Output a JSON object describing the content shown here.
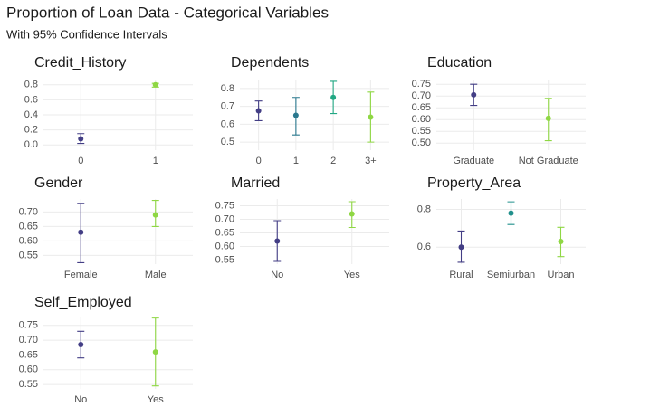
{
  "title": "Proportion of Loan Data - Categorical Variables",
  "subtitle": "With 95% Confidence Intervals",
  "chart_data": [
    {
      "type": "errorbar",
      "title": "Credit_History",
      "categories": [
        "0",
        "1"
      ],
      "values": [
        0.08,
        0.8
      ],
      "lower": [
        0.02,
        0.77
      ],
      "upper": [
        0.15,
        0.82
      ],
      "colors": [
        "#433E85",
        "#8FD744"
      ],
      "ylim": [
        -0.07,
        0.87
      ],
      "yticks": [
        {
          "value": 0,
          "label": "0.0"
        },
        0.2,
        0.4,
        0.6,
        0.8
      ],
      "grid": true
    },
    {
      "type": "errorbar",
      "title": "Dependents",
      "categories": [
        "0",
        "1",
        "2",
        "3+"
      ],
      "values": [
        0.675,
        0.65,
        0.75,
        0.64
      ],
      "lower": [
        0.62,
        0.54,
        0.66,
        0.5
      ],
      "upper": [
        0.73,
        0.75,
        0.84,
        0.78
      ],
      "colors": [
        "#433E85",
        "#2A788E",
        "#22A884",
        "#8FD744"
      ],
      "ylim": [
        0.455,
        0.85
      ],
      "yticks": [
        0.5,
        0.6,
        0.7,
        0.8
      ],
      "grid": true
    },
    {
      "type": "errorbar",
      "title": "Education",
      "categories": [
        "Graduate",
        "Not Graduate"
      ],
      "values": [
        0.705,
        0.605
      ],
      "lower": [
        0.66,
        0.51
      ],
      "upper": [
        0.75,
        0.69
      ],
      "colors": [
        "#433E85",
        "#8FD744"
      ],
      "ylim": [
        0.47,
        0.77
      ],
      "yticks": [
        {
          "value": 0.5,
          "label": "0.50"
        },
        0.55,
        {
          "value": 0.6,
          "label": "0.60"
        },
        0.65,
        {
          "value": 0.7,
          "label": "0.70"
        },
        0.75
      ],
      "grid": true
    },
    {
      "type": "errorbar",
      "title": "Gender",
      "categories": [
        "Female",
        "Male"
      ],
      "values": [
        0.63,
        0.69
      ],
      "lower": [
        0.525,
        0.65
      ],
      "upper": [
        0.73,
        0.74
      ],
      "colors": [
        "#433E85",
        "#8FD744"
      ],
      "ylim": [
        0.52,
        0.745
      ],
      "yticks": [
        0.55,
        {
          "value": 0.6,
          "label": "0.60"
        },
        0.65,
        {
          "value": 0.7,
          "label": "0.70"
        }
      ],
      "grid": true
    },
    {
      "type": "errorbar",
      "title": "Married",
      "categories": [
        "No",
        "Yes"
      ],
      "values": [
        0.62,
        0.72
      ],
      "lower": [
        0.545,
        0.67
      ],
      "upper": [
        0.695,
        0.765
      ],
      "colors": [
        "#433E85",
        "#8FD744"
      ],
      "ylim": [
        0.535,
        0.775
      ],
      "yticks": [
        0.55,
        {
          "value": 0.6,
          "label": "0.60"
        },
        0.65,
        {
          "value": 0.7,
          "label": "0.70"
        },
        0.75
      ],
      "grid": true
    },
    {
      "type": "errorbar",
      "title": "Property_Area",
      "categories": [
        "Rural",
        "Semiurban",
        "Urban"
      ],
      "values": [
        0.6,
        0.78,
        0.63
      ],
      "lower": [
        0.52,
        0.72,
        0.55
      ],
      "upper": [
        0.685,
        0.84,
        0.705
      ],
      "colors": [
        "#433E85",
        "#21908C",
        "#8FD744"
      ],
      "ylim": [
        0.51,
        0.855
      ],
      "yticks": [
        0.6,
        0.8
      ],
      "grid": true
    },
    {
      "type": "errorbar",
      "title": "Self_Employed",
      "categories": [
        "No",
        "Yes"
      ],
      "values": [
        0.685,
        0.66
      ],
      "lower": [
        0.64,
        0.545
      ],
      "upper": [
        0.73,
        0.775
      ],
      "colors": [
        "#433E85",
        "#8FD744"
      ],
      "ylim": [
        0.535,
        0.78
      ],
      "yticks": [
        0.55,
        {
          "value": 0.6,
          "label": "0.60"
        },
        0.65,
        {
          "value": 0.7,
          "label": "0.70"
        },
        0.75
      ],
      "grid": true
    }
  ]
}
